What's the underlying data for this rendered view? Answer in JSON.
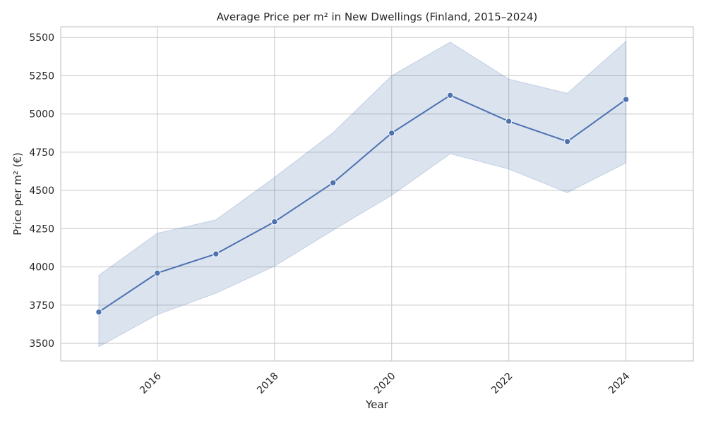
{
  "chart_data": {
    "type": "line",
    "title": "Average Price per m² in New Dwellings (Finland, 2015–2024)",
    "xlabel": "Year",
    "ylabel": "Price per m² (€)",
    "xlim": [
      2014.35,
      2025.15
    ],
    "ylim": [
      3385,
      5570
    ],
    "x_ticks": [
      "2016",
      "2018",
      "2020",
      "2022",
      "2024"
    ],
    "y_ticks": [
      "3500",
      "3750",
      "4000",
      "4250",
      "4500",
      "4750",
      "5000",
      "5250",
      "5500"
    ],
    "grid": true,
    "legend": "none",
    "series": [
      {
        "x": [
          2015,
          2016,
          2017,
          2018,
          2019,
          2020,
          2021,
          2022,
          2023,
          2024
        ],
        "values": [
          3705,
          3960,
          4085,
          4295,
          4550,
          4875,
          5122,
          4952,
          4820,
          5095
        ],
        "lower": [
          3478,
          3688,
          3828,
          4005,
          4240,
          4468,
          4740,
          4640,
          4485,
          4680
        ],
        "upper": [
          3945,
          4220,
          4308,
          4585,
          4878,
          5250,
          5470,
          5228,
          5135,
          5475
        ],
        "color": "#4c72b0",
        "band_color": "#4c72b0"
      }
    ]
  }
}
